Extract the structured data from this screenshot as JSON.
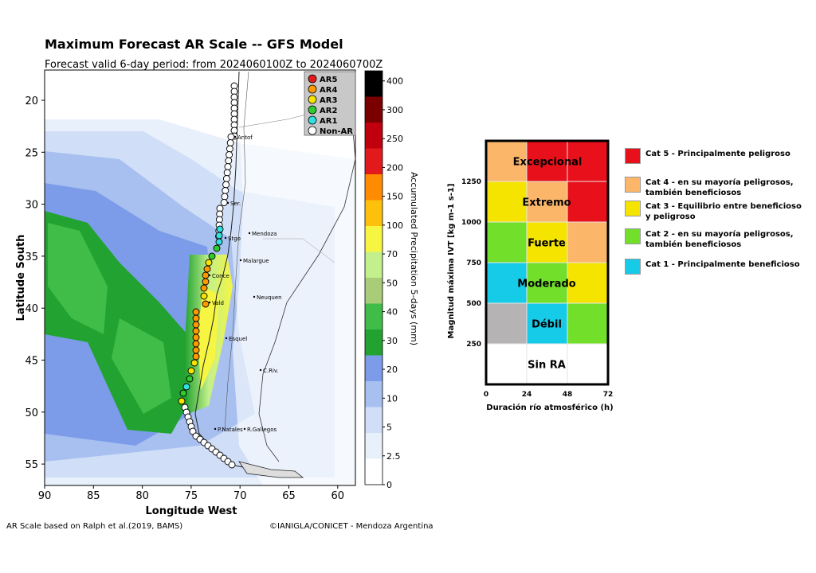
{
  "title": "Maximum Forecast AR Scale -- GFS Model",
  "subtitle": "Forecast valid 6-day period: from 2024060100Z to 2024060700Z",
  "map": {
    "xlabel": "Longitude West",
    "ylabel": "Latitude South",
    "x_ticks": [
      "90",
      "85",
      "80",
      "75",
      "70",
      "65",
      "60"
    ],
    "y_ticks": [
      "20",
      "25",
      "30",
      "35",
      "40",
      "45",
      "50",
      "55"
    ],
    "cities": [
      "Antof",
      "Ser.",
      "Stgo",
      "Mendoza",
      "Malargue",
      "Conce",
      "Neuquen",
      "Vald",
      "Esquel",
      "C.Riv.",
      "P.Natales",
      "R.Gallegos"
    ],
    "ar_legend": [
      {
        "label": "AR5",
        "color": "#e31a1c"
      },
      {
        "label": "AR4",
        "color": "#ff9900"
      },
      {
        "label": "AR3",
        "color": "#f5e400"
      },
      {
        "label": "AR2",
        "color": "#2ecc2e"
      },
      {
        "label": "AR1",
        "color": "#33e0e0"
      },
      {
        "label": "Non-AR",
        "color": "#ffffff"
      }
    ]
  },
  "colorbar": {
    "label": "Accumulated Precipitation 5-days (mm)",
    "ticks": [
      "0",
      "2.5",
      "5",
      "10",
      "20",
      "30",
      "40",
      "50",
      "70",
      "100",
      "150",
      "200",
      "250",
      "300",
      "400"
    ],
    "colors": [
      "#ffffff",
      "#e8f0fb",
      "#d0def7",
      "#a8c0f0",
      "#7c9cea",
      "#22a331",
      "#3fbd48",
      "#a9cc78",
      "#c3f08c",
      "#f5f542",
      "#fec10b",
      "#ff8c00",
      "#e31a1c",
      "#c0000c",
      "#7a0000",
      "#000000"
    ]
  },
  "matrix": {
    "xlabel": "Duración río atmosférico (h)",
    "ylabel": "Magnitud máxima IVT  [kg m-1 s-1]",
    "x_ticks": [
      "0",
      "24",
      "48",
      "72"
    ],
    "y_ticks": [
      "250",
      "500",
      "750",
      "1000",
      "1250"
    ],
    "cells": [
      [
        "#fbb669",
        "#e8101a",
        "#e8101a"
      ],
      [
        "#f5e400",
        "#fbb669",
        "#e8101a"
      ],
      [
        "#72e02a",
        "#f5e400",
        "#fbb669"
      ],
      [
        "#16cbe8",
        "#72e02a",
        "#f5e400"
      ],
      [
        "#b5b3b3",
        "#16cbe8",
        "#72e02a"
      ],
      [
        "#ffffff",
        "#ffffff",
        "#ffffff"
      ]
    ],
    "labels": [
      "Excepcional",
      "Extremo",
      "Fuerte",
      "Moderado",
      "Débil",
      "Sin RA"
    ]
  },
  "legend": [
    {
      "color": "#e8101a",
      "text": "Cat 5 - Principalmente peligroso"
    },
    {
      "color": "#fbb669",
      "text": "Cat 4 - en su mayoría peligrosos, también beneficiosos"
    },
    {
      "color": "#f5e400",
      "text": "Cat 3 - Equilibrio entre beneficioso y peligroso"
    },
    {
      "color": "#72e02a",
      "text": "Cat 2 - en su mayoría peligrosos, también beneficiosos"
    },
    {
      "color": "#16cbe8",
      "text": "Cat 1 - Principalmente beneficioso"
    }
  ],
  "credits": {
    "left": "AR Scale based on Ralph et al.(2019, BAMS)",
    "right": "©IANIGLA/CONICET - Mendoza Argentina"
  }
}
